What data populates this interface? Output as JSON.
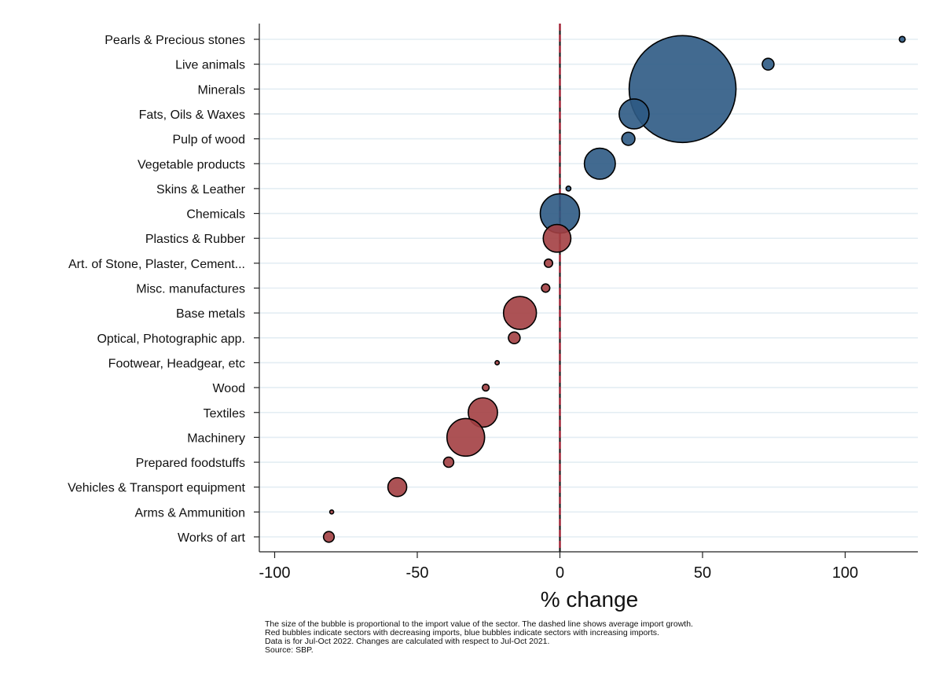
{
  "chart_data": {
    "type": "scatter",
    "subtype": "bubble",
    "xlabel": "% change",
    "xlim": [
      -105,
      125
    ],
    "xticks": [
      -100,
      -50,
      0,
      50,
      100
    ],
    "xtick_labels": [
      "-100",
      "-50",
      "0",
      "50",
      "100"
    ],
    "average_line_x": 0,
    "grid": "horizontal",
    "colors": {
      "increasing": "#2e5a84",
      "decreasing": "#a33f42",
      "average_line": "#a6192e",
      "grid": "#e3edf3"
    },
    "categories": [
      "Pearls & Precious stones",
      "Live animals",
      "Minerals",
      "Fats, Oils & Waxes",
      "Pulp of wood",
      "Vegetable products",
      "Skins & Leather",
      "Chemicals",
      "Plastics & Rubber",
      "Art. of Stone, Plaster, Cement...",
      "Misc. manufactures",
      "Base metals",
      "Optical, Photographic app.",
      "Footwear, Headgear, etc",
      "Wood",
      "Textiles",
      "Machinery",
      "Prepared foodstuffs",
      "Vehicles & Transport equipment",
      "Arms & Ammunition",
      "Works of art"
    ],
    "values": [
      120,
      73,
      43,
      26,
      24,
      14,
      3,
      0,
      -1,
      -4,
      -5,
      -14,
      -16,
      -22,
      -26,
      -27,
      -33,
      -39,
      -57,
      -80,
      -81
    ],
    "sizes": [
      0.3,
      1.2,
      100,
      7.8,
      1.5,
      8.4,
      0.2,
      13.5,
      6.7,
      0.6,
      0.6,
      9.5,
      1.2,
      0.15,
      0.4,
      7.5,
      12.4,
      0.9,
      3.1,
      0.1,
      1.0
    ],
    "directions": [
      "increasing",
      "increasing",
      "increasing",
      "increasing",
      "increasing",
      "increasing",
      "increasing",
      "increasing",
      "decreasing",
      "decreasing",
      "decreasing",
      "decreasing",
      "decreasing",
      "decreasing",
      "decreasing",
      "decreasing",
      "decreasing",
      "decreasing",
      "decreasing",
      "decreasing",
      "decreasing"
    ]
  },
  "notes": {
    "line1": "The size of the bubble is proportional to the import value of the sector. The dashed line shows average import growth.",
    "line2": "Red bubbles indicate sectors with decreasing imports, blue bubbles indicate sectors with increasing imports.",
    "line3": "Data is for Jul-Oct 2022. Changes are calculated with respect to Jul-Oct 2021.",
    "line4": "Source: SBP."
  }
}
